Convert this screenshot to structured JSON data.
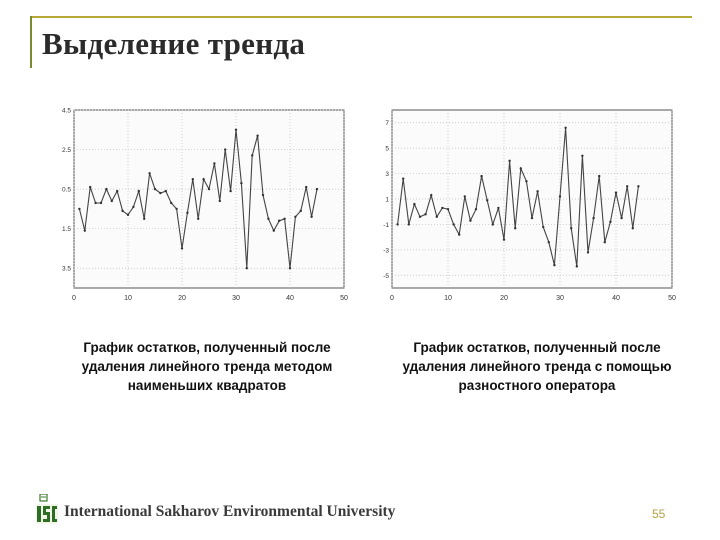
{
  "slide": {
    "title": "Выделение тренда",
    "footer": "International Sakharov Environmental University",
    "page_number": "55",
    "logo_text": "ISEU",
    "colors": {
      "frame": "#b5a93a",
      "footer_number": "#b0a040"
    }
  },
  "chart_data": [
    {
      "type": "line",
      "caption": "График остатков, полученный после удаления линейного тренда методом наименьших квадратов",
      "xlim": [
        0,
        50
      ],
      "ylim": [
        -4.5,
        4.5
      ],
      "x_ticks": [
        "0",
        "10",
        "20",
        "30",
        "40",
        "50"
      ],
      "y_ticks": [
        "4.5",
        "2.5",
        "0.5",
        "-1.5",
        "-3.5"
      ],
      "y_tick_values": [
        4.5,
        2.5,
        0.5,
        -1.5,
        -3.5
      ],
      "grid": true,
      "x": [
        1,
        2,
        3,
        4,
        5,
        6,
        7,
        8,
        9,
        10,
        11,
        12,
        13,
        14,
        15,
        16,
        17,
        18,
        19,
        20,
        21,
        22,
        23,
        24,
        25,
        26,
        27,
        28,
        29,
        30,
        31,
        32,
        33,
        34,
        35,
        36,
        37,
        38,
        39,
        40,
        41,
        42,
        43,
        44,
        45
      ],
      "values": [
        -0.5,
        -1.6,
        0.6,
        -0.2,
        -0.2,
        0.5,
        -0.1,
        0.4,
        -0.6,
        -0.8,
        -0.4,
        0.4,
        -1.0,
        1.3,
        0.5,
        0.3,
        0.4,
        -0.2,
        -0.5,
        -2.5,
        -0.7,
        1.0,
        -1.0,
        1.0,
        0.5,
        1.8,
        -0.1,
        2.5,
        0.4,
        3.5,
        0.8,
        -3.5,
        2.2,
        3.2,
        0.2,
        -1.0,
        -1.6,
        -1.1,
        -1.0,
        -3.5,
        -0.9,
        -0.6,
        0.6,
        -0.9,
        0.5
      ]
    },
    {
      "type": "line",
      "caption": "График остатков, полученный после удаления линейного тренда с помощью разностного оператора",
      "xlim": [
        0,
        50
      ],
      "ylim": [
        -6,
        8
      ],
      "x_ticks": [
        "0",
        "10",
        "20",
        "30",
        "40",
        "50"
      ],
      "y_ticks": [
        "7",
        "5",
        "3",
        "1",
        "-1",
        "-3",
        "-5"
      ],
      "y_tick_values": [
        7,
        5,
        3,
        1,
        -1,
        -3,
        -5
      ],
      "grid": true,
      "x": [
        1,
        2,
        3,
        4,
        5,
        6,
        7,
        8,
        9,
        10,
        11,
        12,
        13,
        14,
        15,
        16,
        17,
        18,
        19,
        20,
        21,
        22,
        23,
        24,
        25,
        26,
        27,
        28,
        29,
        30,
        31,
        32,
        33,
        34,
        35,
        36,
        37,
        38,
        39,
        40,
        41,
        42,
        43,
        44
      ],
      "values": [
        -1.0,
        2.6,
        -1.0,
        0.6,
        -0.4,
        -0.2,
        1.3,
        -0.4,
        0.3,
        0.2,
        -1.0,
        -1.8,
        1.2,
        -0.7,
        0.2,
        2.8,
        0.9,
        -1.0,
        0.3,
        -2.2,
        4.0,
        -1.3,
        3.4,
        2.4,
        -0.5,
        1.6,
        -1.2,
        -2.4,
        -4.2,
        1.2,
        6.6,
        -1.3,
        -4.3,
        4.4,
        -3.2,
        -0.5,
        2.8,
        -2.4,
        -0.8,
        1.5,
        -0.5,
        2.0,
        -1.3,
        2.0
      ]
    }
  ]
}
